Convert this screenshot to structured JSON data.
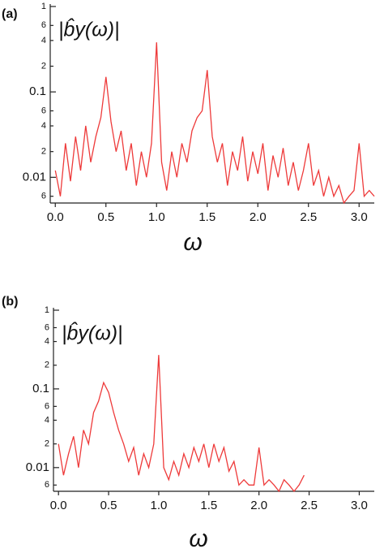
{
  "chart_data": [
    {
      "type": "line",
      "panel": "(a)",
      "ylabel": "|b̂y(ω)|",
      "xlabel": "ω",
      "color": "#ee3a3a",
      "log_y": true,
      "xlim": [
        -0.05,
        3.15
      ],
      "ylim": [
        0.005,
        1
      ],
      "xticks": [
        {
          "value": 0,
          "label": "0.0"
        },
        0.5,
        {
          "value": 1,
          "label": "1.0"
        },
        1.5,
        {
          "value": 2,
          "label": "2.0"
        },
        2.5,
        {
          "value": 3,
          "label": "3.0"
        }
      ],
      "yticks": [
        1,
        {
          "value": 0.6,
          "label": "6"
        },
        {
          "value": 0.4,
          "label": "4"
        },
        {
          "value": 0.2,
          "label": "2"
        },
        0.1,
        {
          "value": 0.06,
          "label": "6"
        },
        {
          "value": 0.04,
          "label": "4"
        },
        {
          "value": 0.02,
          "label": "2"
        },
        0.01,
        {
          "value": 0.006,
          "label": "6"
        }
      ],
      "x": [
        0,
        0.05,
        0.1,
        0.15,
        0.2,
        0.25,
        0.3,
        0.35,
        0.4,
        0.45,
        0.5,
        0.55,
        0.6,
        0.65,
        0.7,
        0.75,
        0.8,
        0.85,
        0.9,
        0.95,
        1,
        1.05,
        1.1,
        1.15,
        1.2,
        1.25,
        1.3,
        1.35,
        1.4,
        1.45,
        1.5,
        1.55,
        1.6,
        1.65,
        1.7,
        1.75,
        1.8,
        1.85,
        1.9,
        1.95,
        2,
        2.05,
        2.1,
        2.15,
        2.2,
        2.25,
        2.3,
        2.35,
        2.4,
        2.45,
        2.5,
        2.55,
        2.6,
        2.65,
        2.7,
        2.75,
        2.8,
        2.85,
        2.9,
        2.95,
        3,
        3.05,
        3.1,
        3.15
      ],
      "values": [
        0.012,
        0.006,
        0.025,
        0.009,
        0.03,
        0.012,
        0.04,
        0.015,
        0.03,
        0.05,
        0.15,
        0.045,
        0.02,
        0.035,
        0.012,
        0.025,
        0.008,
        0.02,
        0.01,
        0.025,
        0.38,
        0.015,
        0.007,
        0.02,
        0.01,
        0.025,
        0.015,
        0.035,
        0.05,
        0.06,
        0.18,
        0.03,
        0.015,
        0.025,
        0.008,
        0.02,
        0.012,
        0.03,
        0.009,
        0.02,
        0.011,
        0.025,
        0.007,
        0.018,
        0.01,
        0.022,
        0.008,
        0.015,
        0.007,
        0.012,
        0.025,
        0.008,
        0.012,
        0.006,
        0.01,
        0.006,
        0.008,
        0.005,
        0.006,
        0.007,
        0.025,
        0.006,
        0.007,
        0.006
      ]
    },
    {
      "type": "line",
      "panel": "(b)",
      "ylabel": "|b̂y(ω)|",
      "xlabel": "ω",
      "color": "#ee3a3a",
      "log_y": true,
      "xlim": [
        -0.05,
        3.15
      ],
      "ylim": [
        0.005,
        1
      ],
      "xticks": [
        {
          "value": 0,
          "label": "0.0"
        },
        0.5,
        {
          "value": 1,
          "label": "1.0"
        },
        1.5,
        {
          "value": 2,
          "label": "2.0"
        },
        2.5,
        {
          "value": 3,
          "label": "3.0"
        }
      ],
      "yticks": [
        1,
        {
          "value": 0.6,
          "label": "6"
        },
        {
          "value": 0.4,
          "label": "4"
        },
        {
          "value": 0.2,
          "label": "2"
        },
        0.1,
        {
          "value": 0.06,
          "label": "6"
        },
        {
          "value": 0.04,
          "label": "4"
        },
        {
          "value": 0.02,
          "label": "2"
        },
        0.01,
        {
          "value": 0.006,
          "label": "6"
        }
      ],
      "x": [
        0,
        0.05,
        0.1,
        0.15,
        0.2,
        0.25,
        0.3,
        0.35,
        0.4,
        0.45,
        0.5,
        0.55,
        0.6,
        0.65,
        0.7,
        0.75,
        0.8,
        0.85,
        0.9,
        0.95,
        1,
        1.05,
        1.1,
        1.15,
        1.2,
        1.25,
        1.3,
        1.35,
        1.4,
        1.45,
        1.5,
        1.55,
        1.6,
        1.65,
        1.7,
        1.75,
        1.8,
        1.85,
        1.9,
        1.95,
        2,
        2.05,
        2.1,
        2.15,
        2.2,
        2.25,
        2.3,
        2.35,
        2.4,
        2.45
      ],
      "values": [
        0.02,
        0.008,
        0.015,
        0.025,
        0.01,
        0.03,
        0.02,
        0.05,
        0.07,
        0.12,
        0.09,
        0.05,
        0.03,
        0.02,
        0.012,
        0.018,
        0.008,
        0.015,
        0.01,
        0.02,
        0.27,
        0.01,
        0.007,
        0.012,
        0.008,
        0.015,
        0.01,
        0.018,
        0.012,
        0.02,
        0.01,
        0.02,
        0.012,
        0.018,
        0.009,
        0.012,
        0.006,
        0.007,
        0.006,
        0.006,
        0.018,
        0.006,
        0.007,
        0.006,
        0.005,
        0.007,
        0.006,
        0.005,
        0.006,
        0.008
      ]
    }
  ]
}
